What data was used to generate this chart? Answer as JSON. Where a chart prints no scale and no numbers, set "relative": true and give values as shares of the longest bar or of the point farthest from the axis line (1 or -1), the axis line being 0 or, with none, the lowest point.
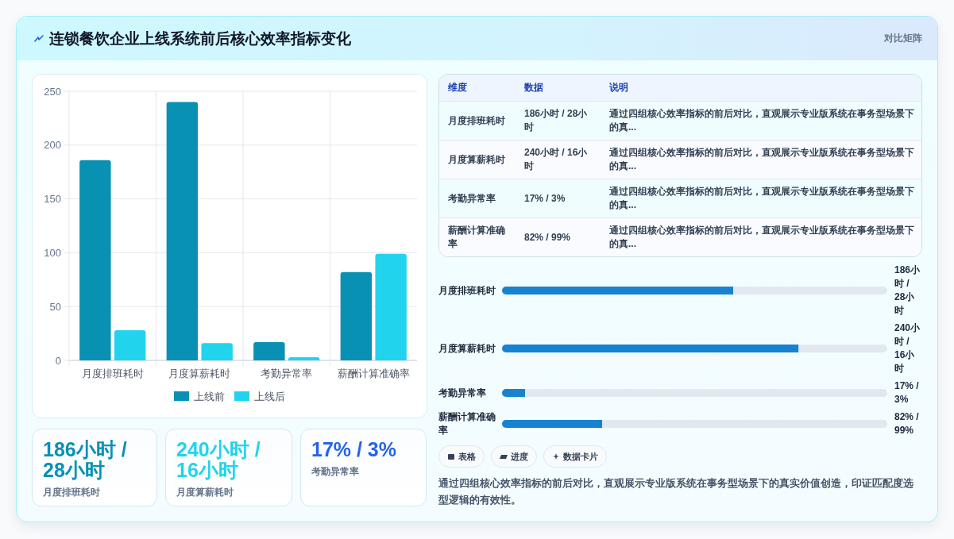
{
  "chart_data": [
    {
      "type": "other",
      "title": "连锁餐饮企业上线系统前后核心效率指标变化",
      "subtitle": "对比矩阵"
    },
    {
      "type": "bar",
      "categories": [
        "月度排班耗时",
        "月度算薪耗时",
        "考勤异常率",
        "薪酬计算准确率"
      ],
      "series": [
        {
          "name": "上线前",
          "color": "#0891b2",
          "values": [
            186,
            240,
            17,
            82
          ]
        },
        {
          "name": "上线后",
          "color": "#22d3ee",
          "values": [
            28,
            16,
            3,
            99
          ]
        }
      ],
      "ylim": [
        0,
        250
      ],
      "yticks": [
        0,
        50,
        100,
        150,
        200,
        250
      ],
      "grid": true,
      "legend": "bottom"
    },
    {
      "type": "other",
      "annotations": [
        "维度",
        "数据",
        "说明",
        "月度排班耗时",
        "186小时 / 28小时",
        "通过四组核心效率指标的前后对比，直观展示专业版系统在事务型场景下的真...",
        "月度算薪耗时",
        "240小时 / 16小时",
        "通过四组核心效率指标的前后对比，直观展示专业版系统在事务型场景下的真...",
        "考勤异常率",
        "17% / 3%",
        "通过四组核心效率指标的前后对比，直观展示专业版系统在事务型场景下的真...",
        "薪酬计算准确率",
        "82% / 99%",
        "通过四组核心效率指标的前后对比，直观展示专业版系统在事务型场景下的真..."
      ]
    },
    {
      "type": "bar",
      "orientation": "horizontal",
      "stacked": true,
      "relative": true,
      "categories": [
        "月度排班耗时",
        "月度算薪耗时",
        "考勤异常率",
        "薪酬计算准确率"
      ],
      "series": [
        {
          "color": "#1782d0",
          "values": [
            0.6,
            0.77,
            0.06,
            0.26
          ]
        },
        {
          "color": "#e2e8f0",
          "values": [
            0.4,
            0.23,
            0.94,
            0.74
          ]
        }
      ],
      "annotations": [
        "186小时 / 28小时",
        "240小时 / 16小时",
        "17% / 3%",
        "82% / 99%"
      ]
    },
    {
      "type": "other",
      "title": "186小时 / 28小时",
      "subtitle": "月度排班耗时",
      "color": "#0891b2"
    },
    {
      "type": "other",
      "title": "240小时 / 16小时",
      "subtitle": "月度算薪耗时",
      "color": "#22d3ee"
    },
    {
      "type": "other",
      "title": "17% / 3%",
      "subtitle": "考勤异常率",
      "color": "#2563eb"
    },
    {
      "type": "other",
      "annotations": [
        "表格",
        "进度",
        "数据卡片",
        "通过四组核心效率指标的前后对比，直观展示专业版系统在事务型场景下的真实价值创造，印证匹配度选型逻辑的有效性。"
      ]
    }
  ]
}
